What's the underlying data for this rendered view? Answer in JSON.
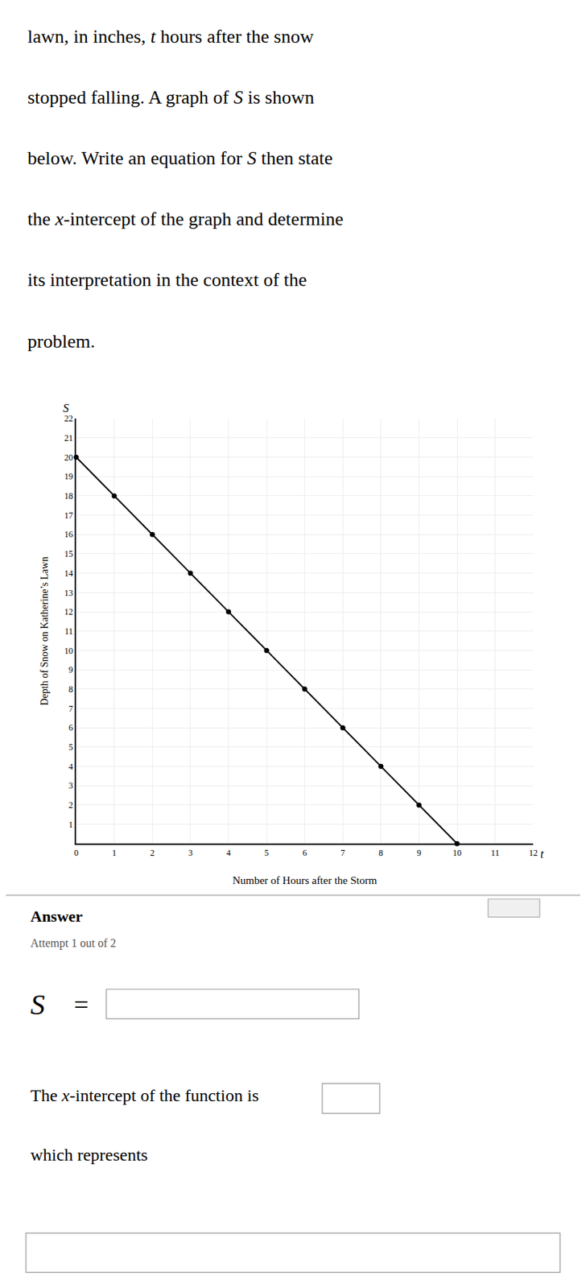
{
  "chart_data": {
    "type": "line",
    "marker": "circle",
    "color": "#000000",
    "x": [
      0,
      1,
      2,
      3,
      4,
      5,
      6,
      7,
      8,
      9,
      10
    ],
    "values": [
      20,
      18,
      16,
      14,
      12,
      10,
      8,
      6,
      4,
      2,
      0
    ],
    "x_label": "Number of Hours after the Storm",
    "y_label": "Depth of Snow on Katherine’s Lawn",
    "xlim": [
      0,
      12
    ],
    "ylim": [
      0,
      22
    ],
    "xticks": [
      0,
      1,
      2,
      3,
      4,
      5,
      6,
      7,
      8,
      9,
      10,
      11,
      12
    ],
    "yticks": [
      1,
      2,
      3,
      4,
      5,
      6,
      7,
      8,
      9,
      10,
      11,
      12,
      13,
      14,
      15,
      16,
      17,
      18,
      19,
      20,
      21,
      22
    ],
    "grid": true,
    "annotations": [
      [
        [
          "lawn, in inches, ",
          false
        ],
        [
          "t",
          true
        ],
        [
          " hours after the snow",
          false
        ]
      ],
      [
        [
          "stopped falling. A graph of ",
          false
        ],
        [
          "S",
          true
        ],
        [
          " is shown",
          false
        ]
      ],
      [
        [
          "below. Write an equation for ",
          false
        ],
        [
          "S",
          true
        ],
        [
          " then state",
          false
        ]
      ],
      [
        [
          "the ",
          false
        ],
        [
          "x",
          true
        ],
        [
          "-intercept of the graph and determine",
          false
        ]
      ],
      [
        [
          "its interpretation in the context of the",
          false
        ]
      ],
      [
        [
          "problem.",
          false
        ]
      ],
      [
        [
          "t",
          true
        ]
      ],
      [
        [
          "S",
          true
        ]
      ],
      [
        [
          "Answer",
          false
        ]
      ],
      [
        [
          "Attempt 1 out of 2",
          false
        ]
      ],
      [
        [
          "S",
          true
        ]
      ],
      [
        [
          "=",
          false
        ]
      ],
      [
        [
          "The ",
          false
        ],
        [
          "x",
          true
        ],
        [
          "-intercept of the function is",
          false
        ]
      ],
      [
        [
          "which represents",
          false
        ]
      ]
    ]
  }
}
